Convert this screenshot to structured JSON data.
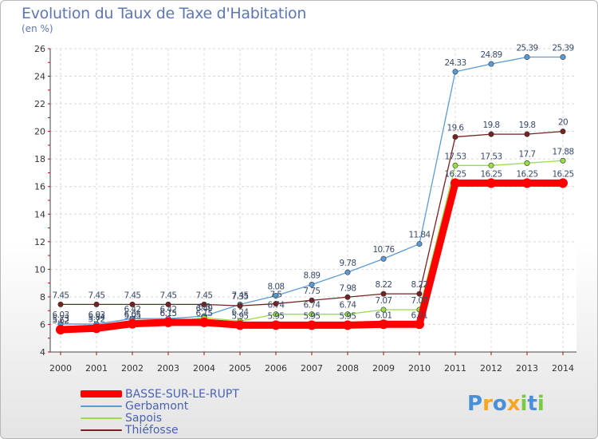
{
  "chart_data": {
    "type": "line",
    "title": "Evolution du Taux de Taxe d'Habitation",
    "subtitle": "(en %)",
    "x": [
      "2000",
      "2001",
      "2002",
      "2003",
      "2004",
      "2005",
      "2006",
      "2007",
      "2008",
      "2009",
      "2010",
      "2011",
      "2012",
      "2013",
      "2014"
    ],
    "ylim": [
      4,
      26
    ],
    "yticks": [
      4,
      6,
      8,
      10,
      12,
      14,
      16,
      18,
      20,
      22,
      24,
      26
    ],
    "grid": true,
    "legend_position": "bottom-left",
    "series": [
      {
        "name": "BASSE-SUR-LE-RUPT",
        "color": "#ff0000",
        "values": [
          5.62,
          5.72,
          6.05,
          6.15,
          6.15,
          5.95,
          5.95,
          5.95,
          5.95,
          6.01,
          6.01,
          16.25,
          16.25,
          16.25,
          16.25
        ],
        "labels": [
          "5.62",
          "5.72",
          "6.05",
          "6.15",
          "6.15",
          "5.95",
          "5.95",
          "5.95",
          "5.95",
          "6.01",
          "6.01",
          "16.25",
          "16.25",
          "16.25",
          "16.25"
        ]
      },
      {
        "name": "Gerbamont",
        "color": "#5b9bd5",
        "values": [
          6.03,
          6.03,
          6.42,
          6.42,
          6.6,
          7.45,
          8.08,
          8.89,
          9.78,
          10.76,
          11.84,
          24.33,
          24.89,
          25.39,
          25.39
        ],
        "labels": [
          "6.03",
          "6.03",
          "6.42",
          "6.42",
          "6.6",
          "7.45",
          "8.08",
          "8.89",
          "9.78",
          "10.76",
          "11.84",
          "24.33",
          "24.89",
          "25.39",
          "25.39"
        ]
      },
      {
        "name": "Sapois",
        "color": "#99dd44",
        "values": [
          5.73,
          5.84,
          5.95,
          6.15,
          6.49,
          6.24,
          6.74,
          6.74,
          6.74,
          7.07,
          7.07,
          17.53,
          17.53,
          17.7,
          17.88
        ],
        "labels": [
          "5.73",
          "5.84",
          "5.95",
          "6.15",
          "6.49",
          "6.24",
          "6.74",
          "6.74",
          "6.74",
          "7.07",
          "7.07",
          "17.53",
          "17.53",
          "17.7",
          "17.88"
        ]
      },
      {
        "name": "Thiéfosse",
        "color": "#772222",
        "values": [
          7.45,
          7.45,
          7.45,
          7.45,
          7.45,
          7.35,
          7.5,
          7.75,
          7.98,
          8.22,
          8.22,
          19.6,
          19.8,
          19.8,
          20
        ],
        "labels": [
          "7.45",
          "7.45",
          "7.45",
          "7.45",
          "7.45",
          "7.35",
          "7.5",
          "7.75",
          "7.98",
          "8.22",
          "8.22",
          "19.6",
          "19.8",
          "19.8",
          "20"
        ]
      }
    ]
  },
  "logo": {
    "letters": [
      "P",
      "r",
      "o",
      "x",
      "i",
      "t",
      "i"
    ],
    "colors": [
      "#4a90d9",
      "#f5a623",
      "#4a90d9",
      "#f5a623",
      "#7ac943",
      "#4a90d9",
      "#7ac943"
    ]
  }
}
